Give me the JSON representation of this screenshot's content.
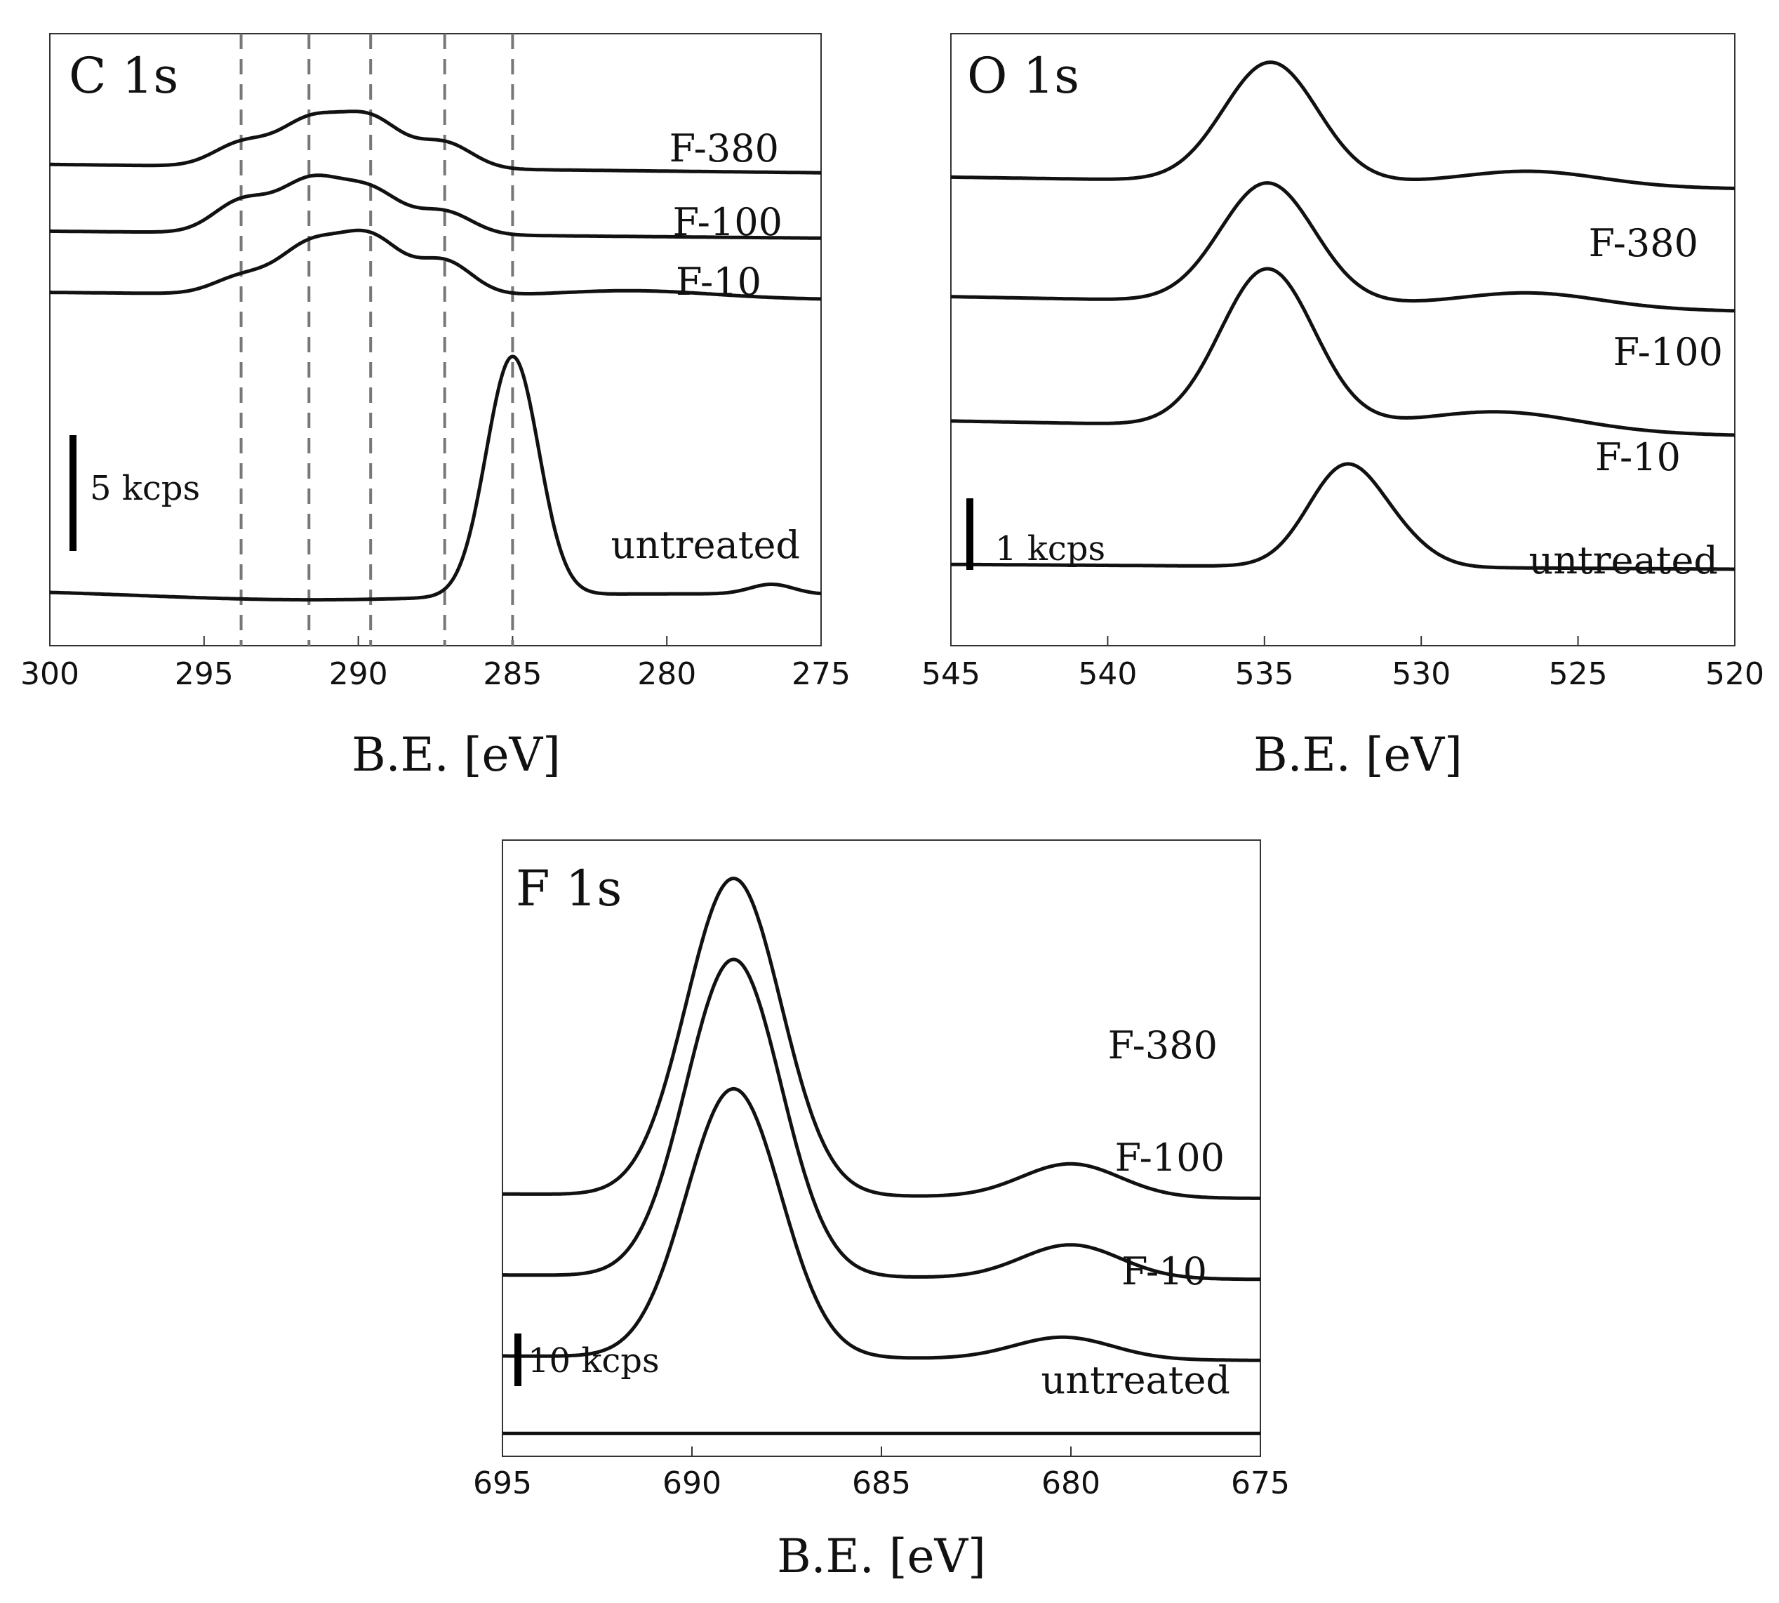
{
  "chart_data": [
    {
      "type": "line",
      "title": "C 1s",
      "xlabel": "B.E. [eV]",
      "ylabel": "",
      "xlim": [
        300,
        275
      ],
      "xticks": [
        300,
        295,
        290,
        285,
        280,
        275
      ],
      "x_reversed": true,
      "grid": false,
      "scale_bar": {
        "value": 5,
        "label": "5 kcps"
      },
      "reference_lines_x": [
        293.8,
        291.6,
        289.6,
        287.2,
        285.0
      ],
      "series": [
        {
          "name": "F-380",
          "offset": 17.3,
          "baseline_left": 0.0,
          "baseline_right": -0.3,
          "peaks": [
            [
              293.8,
              0.8,
              0.9
            ],
            [
              291.6,
              1.6,
              1.0
            ],
            [
              289.6,
              1.7,
              1.0
            ],
            [
              287.2,
              0.9,
              0.9
            ]
          ]
        },
        {
          "name": "F-100",
          "offset": 14.9,
          "baseline_left": 0.0,
          "baseline_right": -0.25,
          "peaks": [
            [
              293.8,
              1.1,
              0.9
            ],
            [
              291.6,
              1.8,
              1.0
            ],
            [
              289.6,
              1.5,
              1.0
            ],
            [
              287.2,
              0.8,
              0.9
            ]
          ]
        },
        {
          "name": "F-10",
          "offset": 12.7,
          "baseline_left": 0.0,
          "baseline_right": -0.25,
          "peaks": [
            [
              293.8,
              0.6,
              0.9
            ],
            [
              291.6,
              1.7,
              1.0
            ],
            [
              289.6,
              2.0,
              1.0
            ],
            [
              287.2,
              1.2,
              0.9
            ],
            [
              281.0,
              0.25,
              2.5
            ]
          ]
        },
        {
          "name": "untreated",
          "offset": 2.0,
          "baseline_left": 0.0,
          "baseline_right": -0.15,
          "peaks": [
            [
              285.0,
              8.6,
              0.85
            ],
            [
              276.6,
              0.35,
              0.7
            ]
          ],
          "dip": [
            292.0,
            -0.3,
            5.0
          ]
        }
      ]
    },
    {
      "type": "line",
      "title": "O 1s",
      "xlabel": "B.E. [eV]",
      "ylabel": "",
      "xlim": [
        545,
        520
      ],
      "xticks": [
        545,
        540,
        535,
        530,
        525,
        520
      ],
      "x_reversed": true,
      "grid": false,
      "scale_bar": {
        "value": 1,
        "label": "1 kcps"
      },
      "series": [
        {
          "name": "F-380",
          "offset": 4.9,
          "baseline_left": 0.0,
          "baseline_right": -0.12,
          "peaks": [
            [
              534.8,
              1.25,
              1.5
            ],
            [
              526.5,
              0.15,
              2.2
            ]
          ]
        },
        {
          "name": "F-100",
          "offset": 3.65,
          "baseline_left": 0.0,
          "baseline_right": -0.15,
          "peaks": [
            [
              534.9,
              1.25,
              1.5
            ],
            [
              526.5,
              0.15,
              2.2
            ]
          ]
        },
        {
          "name": "F-10",
          "offset": 2.35,
          "baseline_left": 0.0,
          "baseline_right": -0.15,
          "peaks": [
            [
              534.9,
              1.65,
              1.5
            ],
            [
              527.5,
              0.2,
              2.5
            ]
          ]
        },
        {
          "name": "untreated",
          "offset": 0.85,
          "baseline_left": 0.0,
          "baseline_right": -0.05,
          "peaks": [
            [
              532.4,
              1.05,
              1.2
            ],
            [
              530.5,
              0.15,
              1.0
            ]
          ]
        }
      ]
    },
    {
      "type": "line",
      "title": "F 1s",
      "xlabel": "B.E. [eV]",
      "ylabel": "",
      "xlim": [
        695,
        675
      ],
      "xticks": [
        695,
        690,
        685,
        680,
        675
      ],
      "x_reversed": true,
      "grid": false,
      "scale_bar": {
        "value": 10,
        "label": "10 kcps"
      },
      "series": [
        {
          "name": "F-380",
          "offset": 29.8,
          "baseline_left": 0.0,
          "baseline_right": -0.5,
          "peaks": [
            [
              688.9,
              36.0,
              1.25
            ],
            [
              680.0,
              3.8,
              1.3
            ]
          ]
        },
        {
          "name": "F-100",
          "offset": 20.6,
          "baseline_left": 0.0,
          "baseline_right": -0.5,
          "peaks": [
            [
              688.9,
              36.0,
              1.25
            ],
            [
              680.0,
              3.8,
              1.3
            ]
          ]
        },
        {
          "name": "F-10",
          "offset": 11.4,
          "baseline_left": 0.0,
          "baseline_right": -0.5,
          "peaks": [
            [
              688.9,
              30.5,
              1.25
            ],
            [
              680.2,
              2.5,
              1.3
            ]
          ]
        },
        {
          "name": "untreated",
          "offset": 2.6,
          "baseline_left": 0.0,
          "baseline_right": 0.0,
          "peaks": []
        }
      ]
    }
  ]
}
